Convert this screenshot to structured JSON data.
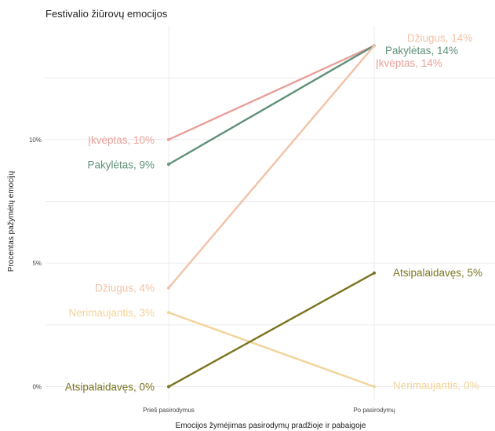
{
  "chart_data": {
    "type": "line",
    "title": "Festivalio žiūrovų emocijos",
    "xlabel": "Emocijos žymėjimas pasirodymų pradžioje ir pabaigoje",
    "ylabel": "Procentas pažymėtų emocijų",
    "categories": [
      "Prieš pasirodymus",
      "Po pasirodymų"
    ],
    "ylim": [
      -0.3,
      14.6
    ],
    "y_ticks": [
      {
        "value": 0,
        "label": "0%"
      },
      {
        "value": 5,
        "label": "5%"
      },
      {
        "value": 10,
        "label": "10%"
      }
    ],
    "grid": true,
    "series": [
      {
        "name": "Įkvėptas",
        "color": "#e8a09a",
        "values": [
          10,
          13.8
        ],
        "labels": [
          "Įkvėptas, 10%",
          "Įkvėptas, 14%"
        ]
      },
      {
        "name": "Pakylėtas",
        "color": "#5f9078",
        "values": [
          9,
          13.8
        ],
        "labels": [
          "Pakylėtas, 9%",
          "Pakylėtas, 14%"
        ]
      },
      {
        "name": "Džiugus",
        "color": "#f2c2a6",
        "values": [
          4,
          13.8
        ],
        "labels": [
          "Džiugus, 4%",
          "Džiugus, 14%"
        ]
      },
      {
        "name": "Nerimaujantis",
        "color": "#f2d49a",
        "values": [
          3,
          0
        ],
        "labels": [
          "Nerimaujantis, 3%",
          "Nerimaujantis, 0%"
        ]
      },
      {
        "name": "Atsipalaidavęs",
        "color": "#7a7420",
        "values": [
          0,
          4.6
        ],
        "labels": [
          "Atsipalaidavęs, 0%",
          "Atsipalaidavęs, 5%"
        ]
      }
    ]
  }
}
